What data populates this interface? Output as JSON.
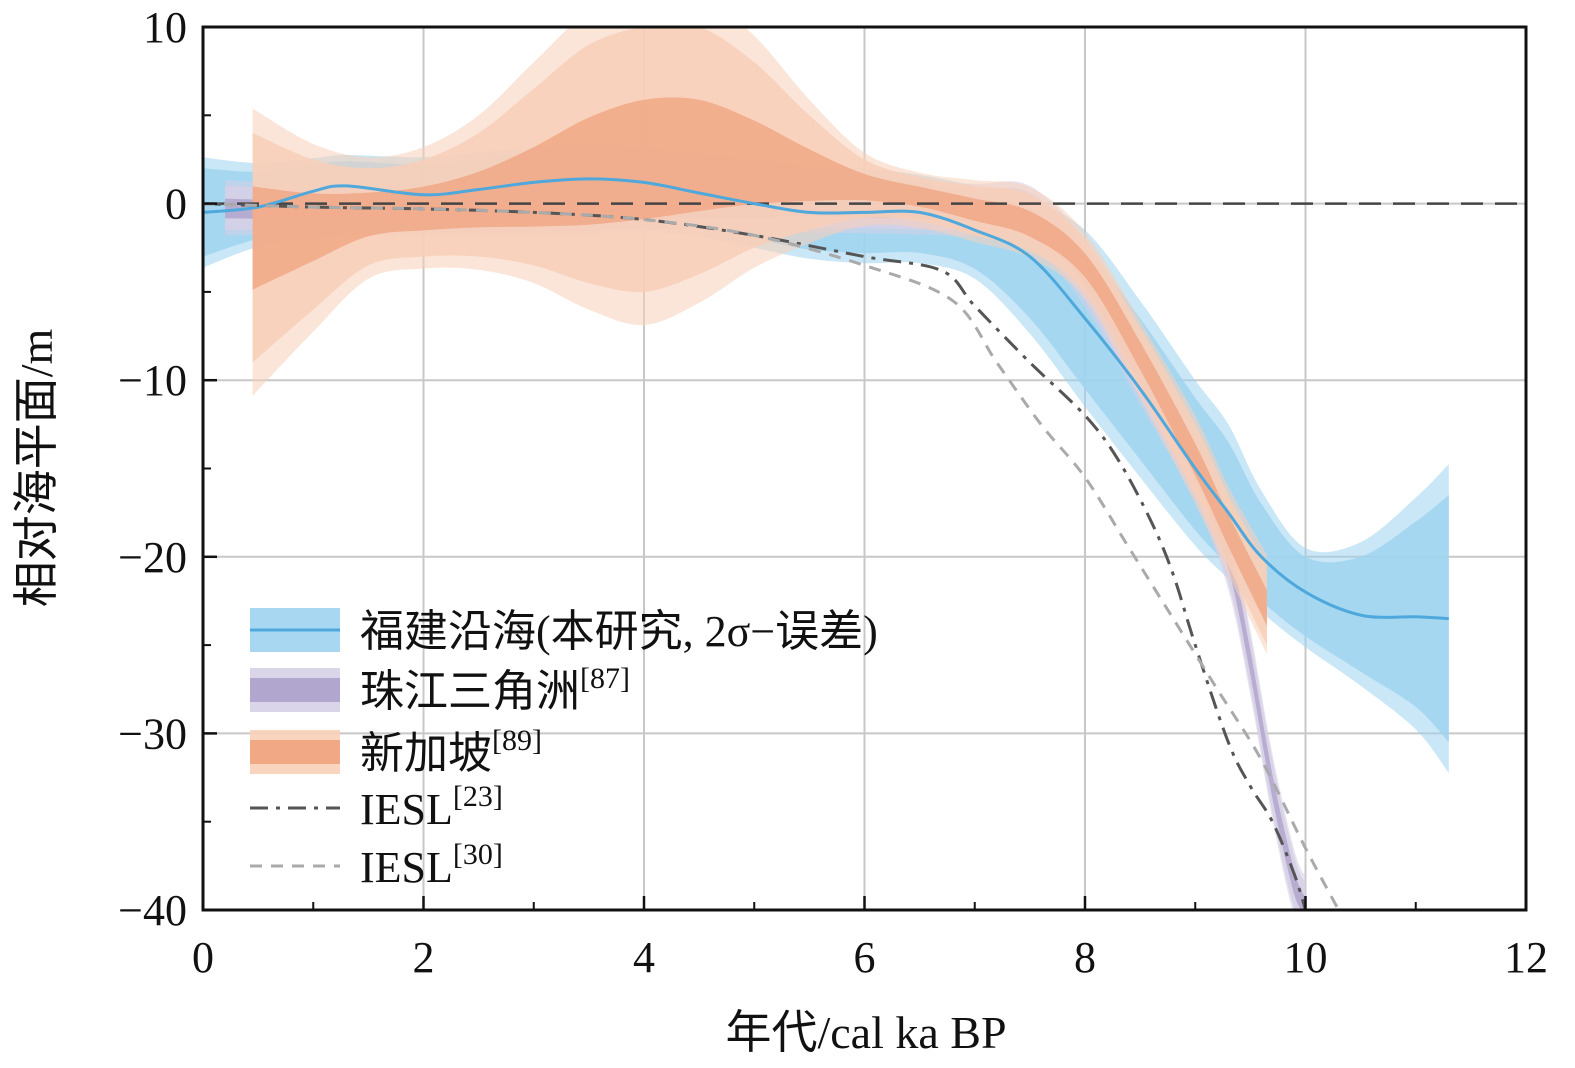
{
  "chart_data": {
    "type": "line",
    "xlabel": "年代/cal ka BP",
    "ylabel": "相对海平面/m",
    "xlim": [
      0,
      12
    ],
    "ylim": [
      -40,
      10
    ],
    "xticks": [
      0,
      2,
      4,
      6,
      8,
      10,
      12
    ],
    "yticks": [
      10,
      0,
      -10,
      -20,
      -30,
      -40
    ],
    "xtick_labels": [
      "0",
      "2",
      "4",
      "6",
      "8",
      "10",
      "12"
    ],
    "ytick_labels": [
      "10",
      "0",
      "−10",
      "−20",
      "−30",
      "−40"
    ],
    "grid": true,
    "legend_position": "bottom-left",
    "reference_line": {
      "y": 0,
      "style": "dashed",
      "color": "#444444"
    },
    "series": [
      {
        "name": "福建沿海(本研究, 2σ−误差)",
        "legend_sup": "",
        "style": "solid-line-with-band",
        "color": "#4ea8dc",
        "band_color": "#9fd4f0",
        "x": [
          0,
          0.5,
          1.0,
          1.3,
          2.0,
          2.5,
          3.0,
          3.5,
          4.0,
          4.5,
          5.0,
          5.5,
          6.0,
          6.5,
          7.0,
          7.5,
          8.0,
          8.5,
          9.0,
          9.3,
          9.6,
          10.0,
          10.5,
          11.0,
          11.3
        ],
        "y": [
          -0.5,
          -0.2,
          0.7,
          1.0,
          0.5,
          0.8,
          1.2,
          1.4,
          1.2,
          0.6,
          0.0,
          -0.5,
          -0.5,
          -0.5,
          -1.5,
          -3.0,
          -6.5,
          -10.5,
          -15.0,
          -17.5,
          -20.0,
          -22.0,
          -23.3,
          -23.4,
          -23.5
        ],
        "lower": [
          -3.0,
          -2.0,
          -1.5,
          -1.2,
          -1.3,
          -1.0,
          -0.7,
          -0.7,
          -0.9,
          -1.4,
          -2.0,
          -2.6,
          -2.8,
          -2.8,
          -3.7,
          -6.5,
          -10.5,
          -14.5,
          -18.5,
          -20.5,
          -22.5,
          -24.5,
          -26.5,
          -28.5,
          -30.5
        ],
        "upper": [
          2.0,
          1.8,
          2.2,
          2.4,
          2.2,
          2.5,
          2.8,
          2.9,
          2.8,
          2.4,
          2.0,
          1.6,
          1.5,
          1.2,
          0.5,
          -0.4,
          -2.5,
          -6.5,
          -11.0,
          -13.5,
          -17.0,
          -20.0,
          -20.0,
          -18.0,
          -16.5
        ]
      },
      {
        "name": "珠江三角洲",
        "legend_sup": "[87]",
        "style": "band",
        "color": "#a99dc8",
        "band_color": "#d6d0e6",
        "x": [
          0.2,
          1.0,
          2.0,
          3.0,
          4.0,
          5.0,
          6.0,
          7.0,
          7.5,
          8.0,
          8.5,
          9.0,
          9.3,
          9.5,
          9.7,
          9.9,
          10.0
        ],
        "y": [
          -0.3,
          -0.4,
          -0.5,
          -0.5,
          -0.4,
          -0.3,
          -0.3,
          -0.5,
          -1.0,
          -4.0,
          -9.5,
          -15.0,
          -20.0,
          -26.0,
          -33.0,
          -38.5,
          -40.0
        ],
        "lower": [
          -1.5,
          -1.5,
          -1.6,
          -1.6,
          -1.5,
          -1.4,
          -1.4,
          -1.6,
          -2.0,
          -5.5,
          -11.0,
          -16.5,
          -21.5,
          -27.5,
          -34.5,
          -40.0,
          -40.0
        ],
        "upper": [
          1.0,
          0.8,
          0.7,
          0.7,
          0.8,
          0.9,
          0.9,
          0.8,
          0.6,
          -2.5,
          -8.0,
          -13.5,
          -18.5,
          -24.5,
          -31.5,
          -37.0,
          -38.5
        ]
      },
      {
        "name": "新加坡",
        "legend_sup": "[89]",
        "style": "band",
        "color": "#f0a07a",
        "band_color": "#f8cfb8",
        "x": [
          0.45,
          1.0,
          1.5,
          2.0,
          2.5,
          3.0,
          3.5,
          4.0,
          4.5,
          5.0,
          5.5,
          6.0,
          6.5,
          7.0,
          7.5,
          8.0,
          8.5,
          9.0,
          9.3,
          9.65
        ],
        "y": [
          -1.5,
          -1.0,
          -0.5,
          -0.3,
          0.0,
          0.5,
          1.5,
          2.5,
          2.5,
          2.0,
          1.5,
          1.0,
          0.5,
          -0.3,
          -1.2,
          -3.5,
          -8.5,
          -14.5,
          -18.5,
          -23.0
        ],
        "lower": [
          -9.0,
          -6.0,
          -3.5,
          -3.0,
          -3.0,
          -3.5,
          -4.5,
          -5.0,
          -4.0,
          -2.5,
          -1.5,
          -0.8,
          -1.0,
          -1.8,
          -2.7,
          -5.0,
          -10.5,
          -16.5,
          -20.5,
          -25.0
        ],
        "upper": [
          4.0,
          2.5,
          2.0,
          2.5,
          4.0,
          6.5,
          9.0,
          10.0,
          10.0,
          8.0,
          5.0,
          2.5,
          1.5,
          1.0,
          0.5,
          -2.0,
          -7.0,
          -12.5,
          -16.5,
          -20.5
        ]
      },
      {
        "name": "IESL",
        "legend_sup": "[23]",
        "style": "dashdot",
        "color": "#555555",
        "x": [
          0,
          1,
          2,
          3,
          4,
          5,
          6,
          6.7,
          7.0,
          7.5,
          8.0,
          8.3,
          8.6,
          8.8,
          9.0,
          9.3,
          9.5,
          9.7,
          9.9,
          10.0
        ],
        "y": [
          0.0,
          -0.2,
          -0.3,
          -0.5,
          -0.9,
          -1.8,
          -3.0,
          -3.8,
          -5.8,
          -9.0,
          -12.0,
          -14.5,
          -18.0,
          -21.0,
          -25.0,
          -30.5,
          -33.0,
          -35.0,
          -38.0,
          -40.0
        ]
      },
      {
        "name": "IESL",
        "legend_sup": "[30]",
        "style": "dashed",
        "color": "#aaaaaa",
        "x": [
          0,
          1,
          2,
          3,
          4,
          5,
          6,
          6.8,
          7.2,
          7.6,
          8.0,
          8.4,
          8.8,
          9.2,
          9.6,
          10.0,
          10.3
        ],
        "y": [
          0.0,
          -0.2,
          -0.3,
          -0.5,
          -0.9,
          -1.8,
          -3.5,
          -5.5,
          -9.0,
          -12.5,
          -15.5,
          -19.5,
          -23.5,
          -27.5,
          -31.5,
          -36.5,
          -40.0
        ]
      }
    ]
  }
}
